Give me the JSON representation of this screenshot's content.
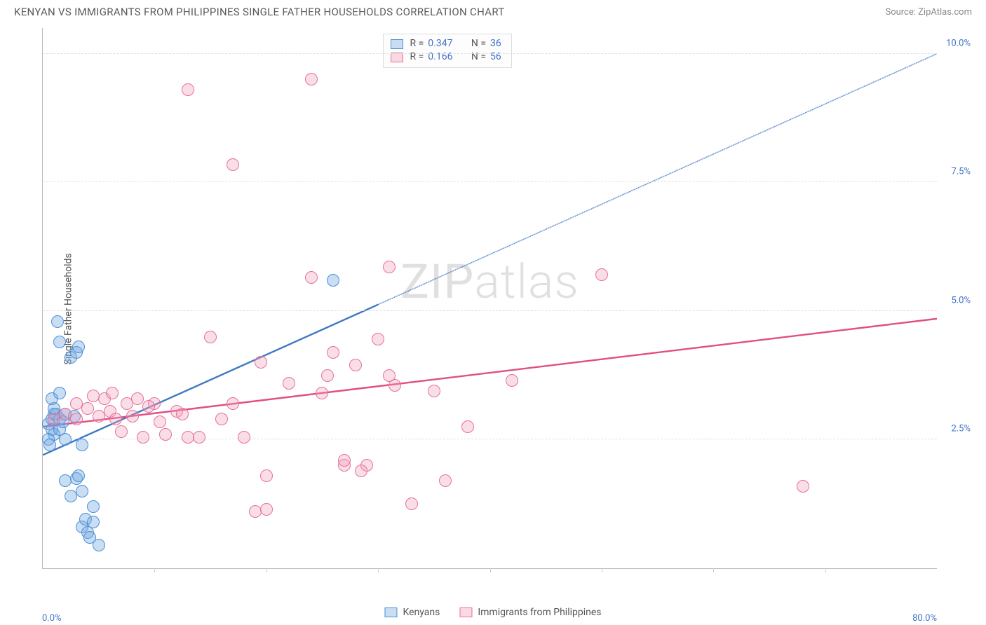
{
  "title": "KENYAN VS IMMIGRANTS FROM PHILIPPINES SINGLE FATHER HOUSEHOLDS CORRELATION CHART",
  "source": "Source: ZipAtlas.com",
  "ylabel": "Single Father Households",
  "watermark_a": "ZIP",
  "watermark_b": "atlas",
  "chart": {
    "type": "scatter",
    "xlim": [
      0,
      80
    ],
    "ylim": [
      0,
      10.5
    ],
    "y_grid": [
      2.5,
      5.0,
      7.5,
      10.0
    ],
    "y_tick_labels": [
      "2.5%",
      "5.0%",
      "7.5%",
      "10.0%"
    ],
    "x_ticks": [
      10,
      20,
      30,
      40,
      50,
      60,
      70
    ],
    "x_start_label": "0.0%",
    "x_end_label": "80.0%",
    "background": "#ffffff",
    "grid_color": "#e0e0e0",
    "axis_color": "#bbbbbb",
    "series": [
      {
        "name": "Kenyans",
        "color_fill": "rgba(120,170,225,0.4)",
        "color_stroke": "#4a90d9",
        "R": "0.347",
        "N": "36",
        "trend": {
          "x1": 0,
          "y1": 2.2,
          "x2": 80,
          "y2": 10.0,
          "solid_until_x": 30
        },
        "points": [
          [
            0.5,
            2.8
          ],
          [
            0.8,
            2.9
          ],
          [
            1,
            3.0
          ],
          [
            1,
            2.6
          ],
          [
            1.3,
            4.8
          ],
          [
            1.5,
            4.4
          ],
          [
            1.2,
            3.0
          ],
          [
            2.5,
            4.1
          ],
          [
            3,
            4.2
          ],
          [
            3.2,
            4.3
          ],
          [
            0.8,
            2.7
          ],
          [
            1,
            3.1
          ],
          [
            1.5,
            2.9
          ],
          [
            2,
            3.0
          ],
          [
            0.5,
            2.5
          ],
          [
            1.5,
            2.7
          ],
          [
            2,
            2.5
          ],
          [
            3.5,
            2.4
          ],
          [
            2,
            1.7
          ],
          [
            3,
            1.75
          ],
          [
            3.5,
            1.5
          ],
          [
            2.5,
            1.4
          ],
          [
            4.5,
            1.2
          ],
          [
            3.5,
            0.8
          ],
          [
            4,
            0.7
          ],
          [
            3.8,
            0.95
          ],
          [
            4.2,
            0.6
          ],
          [
            4.5,
            0.9
          ],
          [
            5,
            0.45
          ],
          [
            3.2,
            1.8
          ],
          [
            0.8,
            3.3
          ],
          [
            1.5,
            3.4
          ],
          [
            1.8,
            2.85
          ],
          [
            2.8,
            2.95
          ],
          [
            0.6,
            2.4
          ],
          [
            26,
            5.6
          ]
        ]
      },
      {
        "name": "Immigrants from Philippines",
        "color_fill": "rgba(240,160,185,0.35)",
        "color_stroke": "#e86f9a",
        "R": "0.166",
        "N": "56",
        "trend": {
          "x1": 0,
          "y1": 2.75,
          "x2": 80,
          "y2": 4.85,
          "solid_until_x": 80
        },
        "points": [
          [
            1,
            2.9
          ],
          [
            2,
            3.0
          ],
          [
            3,
            2.9
          ],
          [
            3,
            3.2
          ],
          [
            4,
            3.1
          ],
          [
            5,
            2.95
          ],
          [
            5.5,
            3.3
          ],
          [
            6,
            3.05
          ],
          [
            7,
            2.65
          ],
          [
            7.5,
            3.2
          ],
          [
            8,
            2.95
          ],
          [
            8.5,
            3.3
          ],
          [
            6.5,
            2.9
          ],
          [
            9,
            2.55
          ],
          [
            10,
            3.2
          ],
          [
            11,
            2.6
          ],
          [
            12,
            3.05
          ],
          [
            13,
            2.55
          ],
          [
            14,
            2.55
          ],
          [
            15,
            4.5
          ],
          [
            13,
            9.3
          ],
          [
            24,
            9.5
          ],
          [
            17,
            7.85
          ],
          [
            18,
            2.55
          ],
          [
            19,
            1.1
          ],
          [
            17,
            3.2
          ],
          [
            19.5,
            4.0
          ],
          [
            20,
            1.8
          ],
          [
            20,
            1.15
          ],
          [
            22,
            3.6
          ],
          [
            24,
            5.65
          ],
          [
            25,
            3.4
          ],
          [
            25.5,
            3.75
          ],
          [
            26,
            4.2
          ],
          [
            27,
            2.0
          ],
          [
            28,
            3.95
          ],
          [
            29,
            2.0
          ],
          [
            30,
            4.45
          ],
          [
            31,
            5.85
          ],
          [
            31,
            3.75
          ],
          [
            31.5,
            3.55
          ],
          [
            27,
            2.1
          ],
          [
            28.5,
            1.9
          ],
          [
            33,
            1.25
          ],
          [
            35,
            3.45
          ],
          [
            38,
            2.75
          ],
          [
            42,
            3.65
          ],
          [
            36,
            1.7
          ],
          [
            50,
            5.7
          ],
          [
            68,
            1.6
          ],
          [
            4.5,
            3.35
          ],
          [
            6.2,
            3.4
          ],
          [
            9.5,
            3.15
          ],
          [
            10.5,
            2.85
          ],
          [
            12.5,
            3.0
          ],
          [
            16,
            2.9
          ]
        ]
      }
    ]
  },
  "legend_top_labels": {
    "R": "R =",
    "N": "N ="
  },
  "legend_bottom": [
    "Kenyans",
    "Immigrants from Philippines"
  ]
}
